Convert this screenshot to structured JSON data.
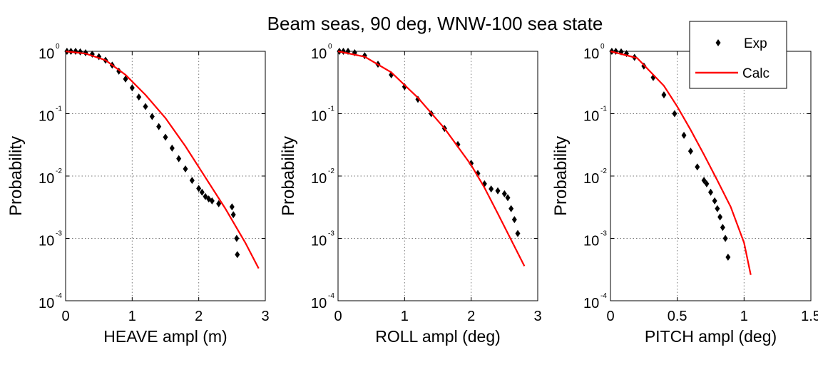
{
  "figure": {
    "title": "Beam seas, 90 deg, WNW-100 sea state",
    "legend": {
      "placement": "top-right",
      "entries": [
        "Exp",
        "Calc"
      ]
    }
  },
  "colors": {
    "exp": "#000000",
    "calc": "#ff0000",
    "grid": "#777777"
  },
  "chart_data": [
    {
      "type": "line",
      "panel": "heave",
      "xlabel": "HEAVE ampl (m)",
      "ylabel": "Probability",
      "xlim": [
        0,
        3
      ],
      "ylim": [
        0.0001,
        1
      ],
      "yscale": "log",
      "xticks": [
        "0",
        "1",
        "2",
        "3"
      ],
      "grid": true,
      "series": [
        {
          "name": "Exp",
          "style": "markers",
          "x": [
            0.02,
            0.08,
            0.15,
            0.22,
            0.3,
            0.4,
            0.5,
            0.6,
            0.7,
            0.8,
            0.9,
            1.0,
            1.1,
            1.2,
            1.3,
            1.4,
            1.5,
            1.6,
            1.7,
            1.8,
            1.9,
            2.0,
            2.05,
            2.1,
            2.15,
            2.2,
            2.3,
            2.5,
            2.52,
            2.57,
            2.58
          ],
          "y": [
            1.0,
            1.0,
            1.0,
            0.98,
            0.95,
            0.9,
            0.82,
            0.72,
            0.6,
            0.48,
            0.36,
            0.26,
            0.185,
            0.13,
            0.09,
            0.062,
            0.042,
            0.028,
            0.019,
            0.013,
            0.0085,
            0.0063,
            0.0055,
            0.0047,
            0.0043,
            0.004,
            0.0036,
            0.0032,
            0.0024,
            0.001,
            0.00055
          ]
        },
        {
          "name": "Calc",
          "style": "line",
          "x": [
            0,
            0.3,
            0.6,
            0.9,
            1.2,
            1.5,
            1.8,
            2.1,
            2.4,
            2.7,
            2.9
          ],
          "y": [
            1.0,
            0.92,
            0.72,
            0.42,
            0.2,
            0.085,
            0.03,
            0.0095,
            0.003,
            0.00085,
            0.00033
          ]
        }
      ]
    },
    {
      "type": "line",
      "panel": "roll",
      "xlabel": "ROLL ampl (deg)",
      "ylabel": "Probability",
      "xlim": [
        0,
        3
      ],
      "ylim": [
        0.0001,
        1
      ],
      "yscale": "log",
      "xticks": [
        "0",
        "1",
        "2",
        "3"
      ],
      "grid": true,
      "series": [
        {
          "name": "Exp",
          "style": "markers",
          "x": [
            0.02,
            0.08,
            0.15,
            0.25,
            0.4,
            0.6,
            0.8,
            1.0,
            1.2,
            1.4,
            1.6,
            1.8,
            2.0,
            2.1,
            2.2,
            2.3,
            2.4,
            2.5,
            2.55,
            2.6,
            2.65,
            2.7
          ],
          "y": [
            1.0,
            1.0,
            1.0,
            0.95,
            0.85,
            0.62,
            0.42,
            0.27,
            0.17,
            0.1,
            0.058,
            0.032,
            0.016,
            0.011,
            0.0075,
            0.0062,
            0.0058,
            0.0052,
            0.0045,
            0.003,
            0.002,
            0.0012
          ]
        },
        {
          "name": "Calc",
          "style": "line",
          "x": [
            0,
            0.4,
            0.8,
            1.2,
            1.6,
            2.0,
            2.2,
            2.4,
            2.6,
            2.8
          ],
          "y": [
            1.0,
            0.82,
            0.46,
            0.18,
            0.058,
            0.015,
            0.0065,
            0.0025,
            0.00095,
            0.00036
          ]
        }
      ]
    },
    {
      "type": "line",
      "panel": "pitch",
      "xlabel": "PITCH ampl (deg)",
      "ylabel": "Probability",
      "xlim": [
        0,
        1.5
      ],
      "ylim": [
        0.0001,
        1
      ],
      "yscale": "log",
      "xticks": [
        "0",
        "0.5",
        "1",
        "1.5"
      ],
      "grid": true,
      "series": [
        {
          "name": "Exp",
          "style": "markers",
          "x": [
            0.01,
            0.04,
            0.08,
            0.12,
            0.18,
            0.25,
            0.32,
            0.4,
            0.48,
            0.55,
            0.6,
            0.65,
            0.7,
            0.72,
            0.75,
            0.78,
            0.8,
            0.82,
            0.84,
            0.86,
            0.88
          ],
          "y": [
            1.0,
            1.0,
            0.98,
            0.92,
            0.8,
            0.58,
            0.38,
            0.2,
            0.1,
            0.045,
            0.025,
            0.014,
            0.0085,
            0.0075,
            0.0055,
            0.004,
            0.003,
            0.0022,
            0.0015,
            0.001,
            0.0005
          ]
        },
        {
          "name": "Calc",
          "style": "line",
          "x": [
            0,
            0.2,
            0.4,
            0.5,
            0.6,
            0.7,
            0.8,
            0.9,
            1.0,
            1.05
          ],
          "y": [
            1.0,
            0.78,
            0.28,
            0.13,
            0.055,
            0.022,
            0.0085,
            0.0032,
            0.00085,
            0.00026
          ]
        }
      ]
    }
  ]
}
